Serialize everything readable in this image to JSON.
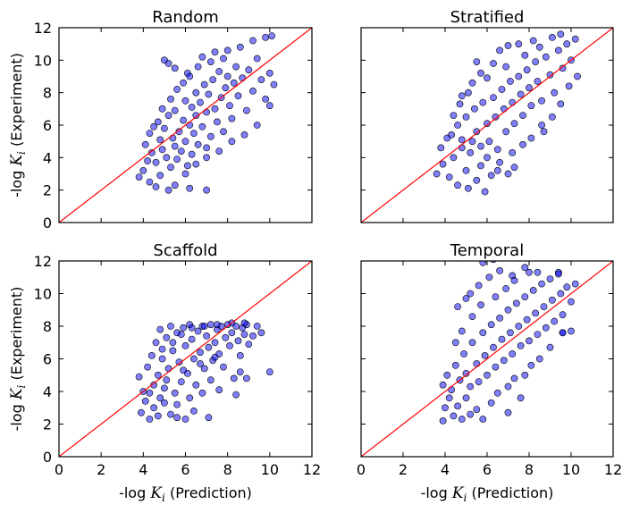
{
  "chart_data": [
    {
      "type": "scatter",
      "title": "Random",
      "xlabel": "-log K_i (Prediction)",
      "ylabel": "-log K_i (Experiment)",
      "xlim": [
        0,
        12
      ],
      "ylim": [
        0,
        12
      ],
      "reference_line": "y = x",
      "points": [
        [
          4.0,
          3.2
        ],
        [
          4.3,
          2.5
        ],
        [
          4.6,
          2.2
        ],
        [
          4.8,
          2.9
        ],
        [
          5.2,
          2.0
        ],
        [
          5.5,
          2.3
        ],
        [
          6.2,
          2.1
        ],
        [
          7.0,
          2.0
        ],
        [
          4.1,
          4.8
        ],
        [
          4.3,
          5.5
        ],
        [
          4.4,
          4.3
        ],
        [
          4.6,
          3.7
        ],
        [
          4.7,
          6.2
        ],
        [
          4.8,
          5.1
        ],
        [
          4.9,
          4.5
        ],
        [
          5.0,
          5.8
        ],
        [
          5.1,
          4.0
        ],
        [
          5.2,
          6.6
        ],
        [
          5.3,
          3.4
        ],
        [
          5.4,
          5.2
        ],
        [
          5.5,
          4.7
        ],
        [
          5.5,
          6.9
        ],
        [
          5.6,
          3.9
        ],
        [
          5.7,
          5.6
        ],
        [
          5.8,
          4.4
        ],
        [
          5.9,
          6.3
        ],
        [
          6.0,
          7.5
        ],
        [
          6.0,
          5.0
        ],
        [
          6.1,
          3.5
        ],
        [
          6.2,
          6.0
        ],
        [
          6.3,
          4.2
        ],
        [
          6.3,
          7.1
        ],
        [
          6.4,
          5.5
        ],
        [
          6.5,
          8.0
        ],
        [
          6.5,
          6.6
        ],
        [
          6.6,
          4.8
        ],
        [
          6.7,
          7.4
        ],
        [
          6.8,
          5.9
        ],
        [
          6.9,
          8.5
        ],
        [
          7.0,
          6.8
        ],
        [
          7.0,
          4.6
        ],
        [
          7.1,
          7.9
        ],
        [
          7.2,
          5.3
        ],
        [
          7.3,
          8.8
        ],
        [
          7.4,
          7.0
        ],
        [
          7.5,
          6.2
        ],
        [
          7.6,
          9.3
        ],
        [
          7.7,
          7.7
        ],
        [
          7.8,
          5.6
        ],
        [
          7.9,
          8.3
        ],
        [
          8.0,
          9.0
        ],
        [
          8.1,
          7.2
        ],
        [
          8.2,
          6.4
        ],
        [
          8.3,
          8.6
        ],
        [
          8.4,
          9.6
        ],
        [
          8.5,
          7.8
        ],
        [
          8.7,
          8.9
        ],
        [
          8.9,
          6.9
        ],
        [
          9.0,
          9.4
        ],
        [
          9.2,
          8.1
        ],
        [
          9.4,
          10.1
        ],
        [
          9.6,
          8.8
        ],
        [
          9.8,
          7.6
        ],
        [
          10.0,
          9.2
        ],
        [
          10.2,
          8.5
        ],
        [
          5.0,
          10.0
        ],
        [
          5.2,
          9.8
        ],
        [
          5.5,
          9.5
        ],
        [
          6.1,
          9.2
        ],
        [
          6.8,
          10.2
        ],
        [
          7.4,
          10.5
        ],
        [
          8.0,
          10.6
        ],
        [
          8.6,
          10.8
        ],
        [
          9.2,
          11.2
        ],
        [
          9.8,
          11.4
        ],
        [
          10.1,
          11.5
        ],
        [
          3.8,
          2.8
        ],
        [
          4.2,
          3.8
        ],
        [
          4.5,
          5.9
        ],
        [
          4.9,
          7.0
        ],
        [
          5.3,
          7.6
        ],
        [
          5.6,
          8.2
        ],
        [
          5.9,
          8.6
        ],
        [
          6.2,
          9.0
        ],
        [
          6.6,
          9.6
        ],
        [
          7.2,
          9.9
        ],
        [
          7.8,
          10.1
        ],
        [
          6.0,
          3.0
        ],
        [
          6.5,
          3.6
        ],
        [
          7.0,
          4.0
        ],
        [
          7.6,
          4.4
        ],
        [
          8.2,
          5.0
        ],
        [
          8.8,
          5.4
        ],
        [
          9.4,
          6.0
        ],
        [
          10.0,
          7.2
        ]
      ]
    },
    {
      "type": "scatter",
      "title": "Stratified",
      "xlabel": "-log K_i (Prediction)",
      "ylabel": "-log K_i (Experiment)",
      "xlim": [
        0,
        12
      ],
      "ylim": [
        0,
        12
      ],
      "reference_line": "y = x",
      "points": [
        [
          3.6,
          3.0
        ],
        [
          3.9,
          3.6
        ],
        [
          4.2,
          2.8
        ],
        [
          4.4,
          4.0
        ],
        [
          4.6,
          2.3
        ],
        [
          4.8,
          4.6
        ],
        [
          5.0,
          3.2
        ],
        [
          5.1,
          2.1
        ],
        [
          5.3,
          5.0
        ],
        [
          5.5,
          2.6
        ],
        [
          5.7,
          3.5
        ],
        [
          5.9,
          1.9
        ],
        [
          6.2,
          2.9
        ],
        [
          6.5,
          3.2
        ],
        [
          7.0,
          3.0
        ],
        [
          7.3,
          3.4
        ],
        [
          4.3,
          5.4
        ],
        [
          4.6,
          6.0
        ],
        [
          4.8,
          5.1
        ],
        [
          5.0,
          6.5
        ],
        [
          5.2,
          4.3
        ],
        [
          5.4,
          7.0
        ],
        [
          5.5,
          5.6
        ],
        [
          5.7,
          4.7
        ],
        [
          5.8,
          7.4
        ],
        [
          6.0,
          6.1
        ],
        [
          6.1,
          5.0
        ],
        [
          6.3,
          7.7
        ],
        [
          6.4,
          6.5
        ],
        [
          6.5,
          4.5
        ],
        [
          6.7,
          8.2
        ],
        [
          6.8,
          7.0
        ],
        [
          6.9,
          5.6
        ],
        [
          7.1,
          8.7
        ],
        [
          7.2,
          7.4
        ],
        [
          7.3,
          6.1
        ],
        [
          7.5,
          9.0
        ],
        [
          7.6,
          7.9
        ],
        [
          7.7,
          6.6
        ],
        [
          7.9,
          9.4
        ],
        [
          8.0,
          8.3
        ],
        [
          8.1,
          7.2
        ],
        [
          8.3,
          9.9
        ],
        [
          8.4,
          8.7
        ],
        [
          8.6,
          7.5
        ],
        [
          8.8,
          10.2
        ],
        [
          9.0,
          9.1
        ],
        [
          9.2,
          8.0
        ],
        [
          9.4,
          10.6
        ],
        [
          9.6,
          9.5
        ],
        [
          9.8,
          11.0
        ],
        [
          10.0,
          10.0
        ],
        [
          10.2,
          11.3
        ],
        [
          4.8,
          7.8
        ],
        [
          5.3,
          8.6
        ],
        [
          5.7,
          9.2
        ],
        [
          6.3,
          9.8
        ],
        [
          6.6,
          10.6
        ],
        [
          5.5,
          9.9
        ],
        [
          7.0,
          10.9
        ],
        [
          7.5,
          11.0
        ],
        [
          8.2,
          11.2
        ],
        [
          9.1,
          11.4
        ],
        [
          3.8,
          4.6
        ],
        [
          4.1,
          5.2
        ],
        [
          4.4,
          6.6
        ],
        [
          4.7,
          7.3
        ],
        [
          5.1,
          8.0
        ],
        [
          6.0,
          8.9
        ],
        [
          6.9,
          9.6
        ],
        [
          7.8,
          10.3
        ],
        [
          8.5,
          10.8
        ],
        [
          9.5,
          11.6
        ],
        [
          8.7,
          5.6
        ],
        [
          9.1,
          6.5
        ],
        [
          9.5,
          7.3
        ],
        [
          9.9,
          8.4
        ],
        [
          10.3,
          9.0
        ],
        [
          7.7,
          4.8
        ],
        [
          8.1,
          5.2
        ],
        [
          8.6,
          6.0
        ],
        [
          6.0,
          4.0
        ],
        [
          6.6,
          3.7
        ],
        [
          7.2,
          4.3
        ]
      ]
    },
    {
      "type": "scatter",
      "title": "Scaffold",
      "xlabel": "-log K_i (Prediction)",
      "ylabel": "-log K_i (Experiment)",
      "xlim": [
        0,
        12
      ],
      "ylim": [
        0,
        12
      ],
      "reference_line": "y = x",
      "points": [
        [
          3.9,
          2.7
        ],
        [
          4.1,
          3.4
        ],
        [
          4.3,
          2.3
        ],
        [
          4.5,
          3.0
        ],
        [
          4.7,
          2.5
        ],
        [
          5.0,
          3.3
        ],
        [
          5.3,
          2.6
        ],
        [
          5.6,
          2.4
        ],
        [
          6.0,
          2.3
        ],
        [
          6.4,
          2.8
        ],
        [
          7.1,
          2.4
        ],
        [
          3.8,
          4.9
        ],
        [
          4.0,
          4.0
        ],
        [
          4.2,
          5.5
        ],
        [
          4.4,
          6.2
        ],
        [
          4.5,
          4.4
        ],
        [
          4.6,
          7.0
        ],
        [
          4.7,
          5.0
        ],
        [
          4.8,
          7.8
        ],
        [
          4.9,
          6.0
        ],
        [
          5.0,
          4.2
        ],
        [
          5.1,
          7.3
        ],
        [
          5.2,
          5.4
        ],
        [
          5.3,
          8.0
        ],
        [
          5.4,
          6.5
        ],
        [
          5.5,
          3.9
        ],
        [
          5.6,
          7.6
        ],
        [
          5.7,
          5.8
        ],
        [
          5.8,
          4.6
        ],
        [
          5.9,
          7.9
        ],
        [
          6.0,
          6.8
        ],
        [
          6.1,
          5.1
        ],
        [
          6.2,
          8.1
        ],
        [
          6.3,
          7.2
        ],
        [
          6.4,
          6.0
        ],
        [
          6.5,
          4.4
        ],
        [
          6.6,
          7.7
        ],
        [
          6.7,
          6.4
        ],
        [
          6.8,
          8.0
        ],
        [
          6.9,
          5.4
        ],
        [
          7.0,
          7.4
        ],
        [
          7.1,
          6.7
        ],
        [
          7.2,
          8.1
        ],
        [
          7.3,
          5.9
        ],
        [
          7.4,
          7.0
        ],
        [
          7.5,
          7.8
        ],
        [
          7.6,
          6.3
        ],
        [
          7.7,
          8.0
        ],
        [
          7.8,
          5.5
        ],
        [
          7.9,
          7.3
        ],
        [
          8.0,
          8.1
        ],
        [
          8.1,
          6.8
        ],
        [
          8.2,
          7.6
        ],
        [
          8.3,
          4.8
        ],
        [
          8.4,
          8.0
        ],
        [
          8.5,
          7.1
        ],
        [
          8.6,
          6.2
        ],
        [
          8.7,
          7.9
        ],
        [
          8.8,
          7.5
        ],
        [
          8.9,
          8.1
        ],
        [
          9.0,
          6.9
        ],
        [
          9.2,
          7.4
        ],
        [
          9.4,
          8.0
        ],
        [
          9.6,
          7.6
        ],
        [
          7.6,
          4.1
        ],
        [
          8.4,
          3.8
        ],
        [
          8.6,
          5.2
        ],
        [
          8.9,
          4.8
        ],
        [
          10.0,
          5.2
        ],
        [
          4.9,
          6.6
        ],
        [
          5.4,
          7.0
        ],
        [
          5.8,
          7.5
        ],
        [
          6.3,
          7.9
        ],
        [
          6.9,
          8.0
        ],
        [
          7.5,
          8.1
        ],
        [
          8.2,
          8.2
        ],
        [
          8.8,
          8.2
        ],
        [
          4.3,
          3.9
        ],
        [
          4.8,
          3.6
        ],
        [
          5.6,
          3.2
        ],
        [
          6.2,
          3.6
        ],
        [
          6.8,
          3.9
        ],
        [
          7.2,
          4.7
        ],
        [
          5.1,
          4.7
        ],
        [
          5.9,
          5.3
        ],
        [
          6.7,
          5.7
        ],
        [
          7.4,
          6.1
        ]
      ]
    },
    {
      "type": "scatter",
      "title": "Temporal",
      "xlabel": "-log K_i (Prediction)",
      "ylabel": "-log K_i (Experiment)",
      "xlim": [
        0,
        12
      ],
      "ylim": [
        0,
        12
      ],
      "reference_line": "y = x",
      "points": [
        [
          3.9,
          2.2
        ],
        [
          4.0,
          3.0
        ],
        [
          4.2,
          3.6
        ],
        [
          4.4,
          2.5
        ],
        [
          4.6,
          3.1
        ],
        [
          4.8,
          2.3
        ],
        [
          5.0,
          3.6
        ],
        [
          5.2,
          2.6
        ],
        [
          5.5,
          2.9
        ],
        [
          5.8,
          2.3
        ],
        [
          6.2,
          3.3
        ],
        [
          7.0,
          2.7
        ],
        [
          7.6,
          3.6
        ],
        [
          3.9,
          4.4
        ],
        [
          4.1,
          5.0
        ],
        [
          4.3,
          4.1
        ],
        [
          4.5,
          5.6
        ],
        [
          4.7,
          4.7
        ],
        [
          4.9,
          6.3
        ],
        [
          5.0,
          5.1
        ],
        [
          5.2,
          4.3
        ],
        [
          5.3,
          7.0
        ],
        [
          5.5,
          5.7
        ],
        [
          5.6,
          4.6
        ],
        [
          5.8,
          7.6
        ],
        [
          5.9,
          6.2
        ],
        [
          6.0,
          5.0
        ],
        [
          6.2,
          8.1
        ],
        [
          6.3,
          6.7
        ],
        [
          6.4,
          5.5
        ],
        [
          6.6,
          8.5
        ],
        [
          6.7,
          7.2
        ],
        [
          6.8,
          5.9
        ],
        [
          7.0,
          9.0
        ],
        [
          7.1,
          7.6
        ],
        [
          7.2,
          6.3
        ],
        [
          7.3,
          4.8
        ],
        [
          7.4,
          9.4
        ],
        [
          7.5,
          8.0
        ],
        [
          7.6,
          6.8
        ],
        [
          7.8,
          9.8
        ],
        [
          7.9,
          8.4
        ],
        [
          8.0,
          7.1
        ],
        [
          8.1,
          5.6
        ],
        [
          8.2,
          10.2
        ],
        [
          8.3,
          8.8
        ],
        [
          8.4,
          7.5
        ],
        [
          8.6,
          10.6
        ],
        [
          8.7,
          9.2
        ],
        [
          8.8,
          7.9
        ],
        [
          9.0,
          10.9
        ],
        [
          9.1,
          9.6
        ],
        [
          9.2,
          8.3
        ],
        [
          9.4,
          11.3
        ],
        [
          9.5,
          10.0
        ],
        [
          9.6,
          8.7
        ],
        [
          9.8,
          10.4
        ],
        [
          10.0,
          9.5
        ],
        [
          10.2,
          10.6
        ],
        [
          9.6,
          7.6
        ],
        [
          10.0,
          7.7
        ],
        [
          5.8,
          11.9
        ],
        [
          6.6,
          11.4
        ],
        [
          7.2,
          11.1
        ],
        [
          7.8,
          11.6
        ],
        [
          8.4,
          11.3
        ],
        [
          9.4,
          11.2
        ],
        [
          5.2,
          10.0
        ],
        [
          5.6,
          10.5
        ],
        [
          6.1,
          11.0
        ],
        [
          6.3,
          12.1
        ],
        [
          4.6,
          9.2
        ],
        [
          5.0,
          9.7
        ],
        [
          4.5,
          7.0
        ],
        [
          4.8,
          7.7
        ],
        [
          5.3,
          8.6
        ],
        [
          5.7,
          9.3
        ],
        [
          6.4,
          9.8
        ],
        [
          6.9,
          10.3
        ],
        [
          7.3,
          10.8
        ],
        [
          8.0,
          11.3
        ],
        [
          6.5,
          3.9
        ],
        [
          7.0,
          4.3
        ],
        [
          7.8,
          5.0
        ],
        [
          8.5,
          6.0
        ],
        [
          9.0,
          6.7
        ],
        [
          9.6,
          7.6
        ]
      ]
    }
  ]
}
